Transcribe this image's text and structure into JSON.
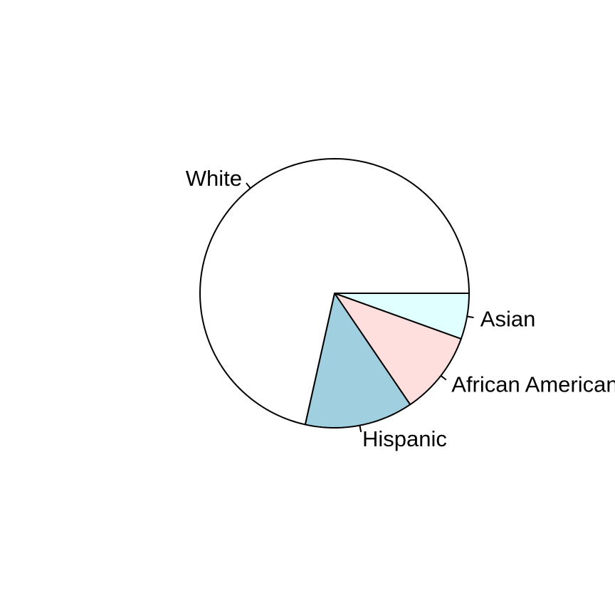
{
  "chart_data": {
    "type": "pie",
    "start_angle_deg": 0,
    "direction": "clockwise",
    "slices": [
      {
        "label": "Asian",
        "value": 5.5,
        "color": "#e0ffff"
      },
      {
        "label": "African American",
        "value": 10,
        "color": "#ffdede"
      },
      {
        "label": "Hispanic",
        "value": 13,
        "color": "#a0cfe0"
      },
      {
        "label": "White",
        "value": 71.5,
        "color": "#ffffff"
      }
    ]
  }
}
